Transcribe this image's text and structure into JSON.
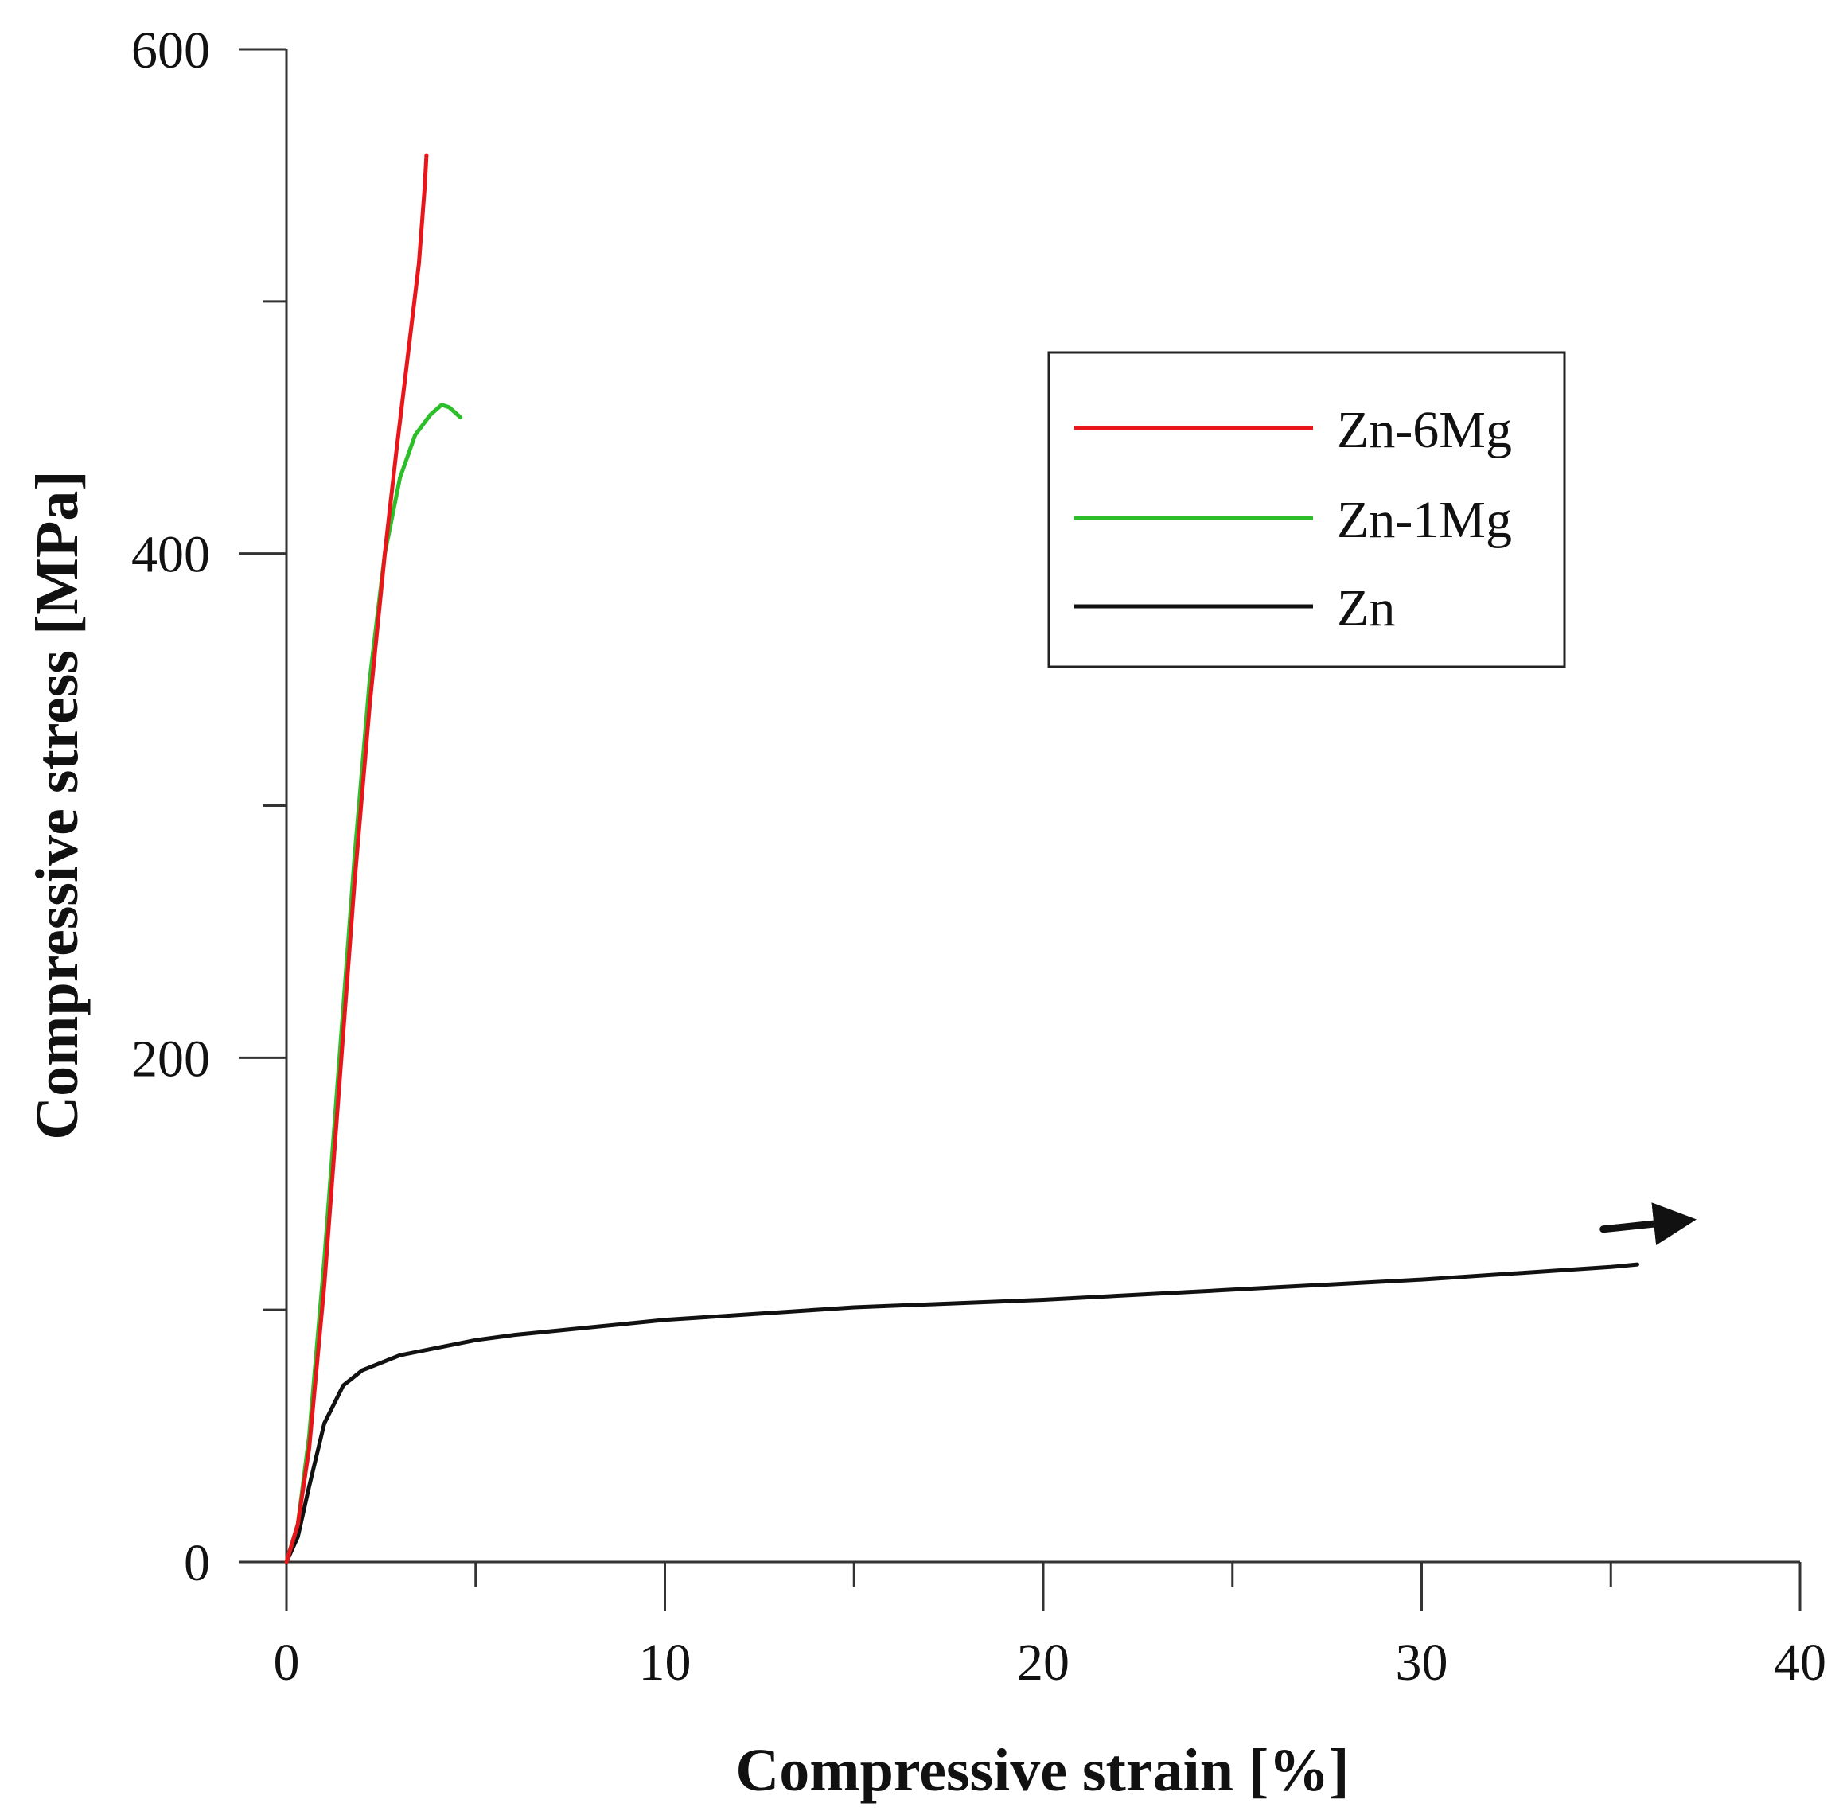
{
  "chart_data": {
    "type": "line",
    "title": "",
    "xlabel": "Compressive strain [%]",
    "ylabel": "Compressive stress [MPa]",
    "xlim": [
      0,
      40
    ],
    "ylim": [
      0,
      600
    ],
    "x_major_ticks": [
      0,
      10,
      20,
      30,
      40
    ],
    "x_tick_labels": [
      "0",
      "10",
      "20",
      "30",
      "40"
    ],
    "x_minor_ticks": [
      5,
      15,
      25,
      35
    ],
    "y_major_ticks": [
      0,
      200,
      400,
      600
    ],
    "y_tick_labels": [
      "0",
      "200",
      "400",
      "600"
    ],
    "y_minor_ticks": [
      100,
      300,
      500
    ],
    "grid": false,
    "legend_position": "top-right",
    "series": [
      {
        "name": "Zn-6Mg",
        "color": "#e8161b",
        "x": [
          0,
          0.3,
          0.6,
          1.0,
          1.4,
          1.8,
          2.2,
          2.6,
          2.9,
          3.1,
          3.3,
          3.5,
          3.65,
          3.7
        ],
        "y": [
          0,
          15,
          45,
          110,
          190,
          270,
          340,
          400,
          440,
          465,
          490,
          515,
          545,
          558
        ]
      },
      {
        "name": "Zn-1Mg",
        "color": "#2dbf2a",
        "x": [
          0,
          0.3,
          0.6,
          1.0,
          1.4,
          1.8,
          2.2,
          2.6,
          3.0,
          3.4,
          3.8,
          4.1,
          4.3,
          4.6
        ],
        "y": [
          0,
          15,
          50,
          120,
          200,
          280,
          350,
          400,
          430,
          447,
          455,
          459,
          458,
          454
        ]
      },
      {
        "name": "Zn",
        "color": "#111111",
        "x": [
          0,
          0.3,
          0.6,
          1.0,
          1.5,
          2.0,
          3.0,
          4.0,
          5.0,
          6.0,
          8.0,
          10.0,
          12.0,
          15.0,
          20.0,
          25.0,
          30.0,
          35.0,
          35.7
        ],
        "y": [
          0,
          10,
          30,
          55,
          70,
          76,
          82,
          85,
          88,
          90,
          93,
          96,
          98,
          101,
          104,
          108,
          112,
          117,
          118
        ]
      }
    ],
    "annotations": [
      {
        "type": "arrow",
        "direction": "right",
        "from": [
          34.8,
          132
        ],
        "to": [
          36.7,
          135
        ]
      }
    ]
  }
}
